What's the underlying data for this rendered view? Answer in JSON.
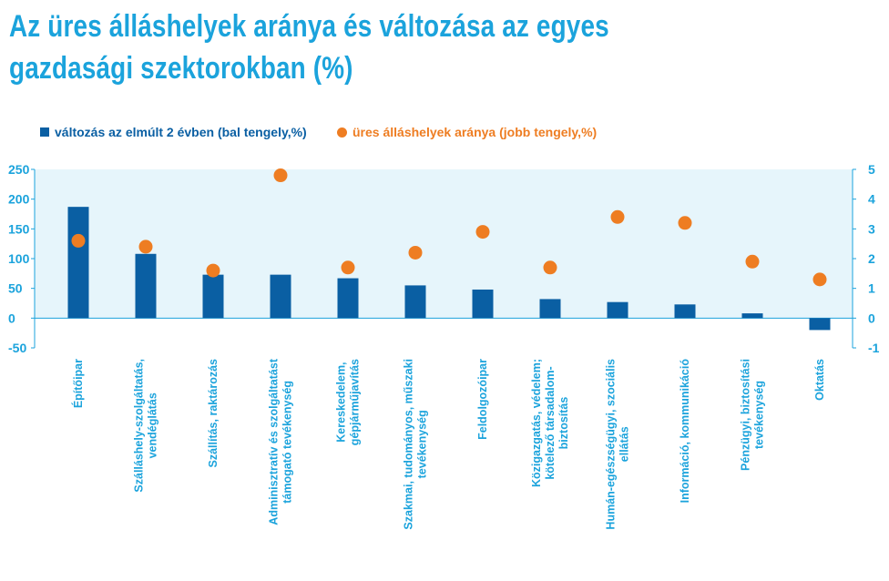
{
  "title": {
    "line1": "Az üres álláshelyek aránya és változása az egyes",
    "line2": "gazdasági szektorokban (%)"
  },
  "colors": {
    "title": "#1ba3dc",
    "bar": "#0a5fa3",
    "dot": "#ee7d22",
    "band": "#e6f5fb",
    "axis": "#1ba3dc",
    "category_text": "#1ba3dc"
  },
  "legend": {
    "bar_label": "változás az elmúlt 2 évben (bal tengely,%)",
    "dot_label": "üres álláshelyek aránya (jobb tengely,%)"
  },
  "chart_data": {
    "type": "bar",
    "categories": [
      [
        "Építőipar"
      ],
      [
        "Szálláshely-szolgáltatás,",
        "vendéglátás"
      ],
      [
        "Szállítás, raktározás"
      ],
      [
        "Adminisztratív és szolgáltatást",
        "támogató tevékenység"
      ],
      [
        "Kereskedelem,",
        "gépjárműjavítás"
      ],
      [
        "Szakmai, tudományos, műszaki",
        "tevékenység"
      ],
      [
        "Feldolgozóipar"
      ],
      [
        "Közigazgatás, védelem;",
        "kötelező társadalom-",
        "biztosítás"
      ],
      [
        "Humán-egészségügyi, szociális",
        "ellátás"
      ],
      [
        "Információ, kommunikáció"
      ],
      [
        "Pénzügyi, biztosítási",
        "tevékenység"
      ],
      [
        "Oktatás"
      ]
    ],
    "series": [
      {
        "name": "változás az elmúlt 2 évben (bal tengely,%)",
        "type": "bar",
        "axis": "left",
        "values": [
          187,
          108,
          73,
          73,
          67,
          55,
          48,
          32,
          27,
          23,
          8,
          -20
        ]
      },
      {
        "name": "üres álláshelyek aránya (jobb tengely,%)",
        "type": "scatter",
        "axis": "right",
        "values": [
          2.6,
          2.4,
          1.6,
          4.8,
          1.7,
          2.2,
          2.9,
          1.7,
          3.4,
          3.2,
          1.9,
          1.3
        ]
      }
    ],
    "left_axis": {
      "min": -50,
      "max": 250,
      "ticks": [
        "250",
        "200",
        "150",
        "100",
        "50",
        "0",
        "-50"
      ]
    },
    "right_axis": {
      "min": -1,
      "max": 5,
      "ticks": [
        "5",
        "4",
        "3",
        "2",
        "1",
        "0",
        "-1"
      ]
    },
    "shaded_range_left": [
      0,
      250
    ]
  }
}
